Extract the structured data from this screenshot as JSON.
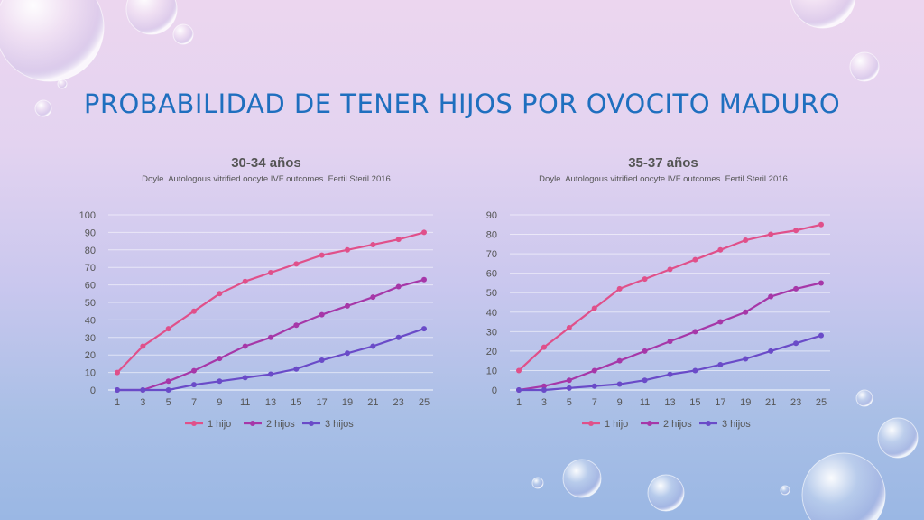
{
  "title": "PROBABILIDAD DE TENER HIJOS POR OVOCITO MADURO",
  "chart_data": [
    {
      "type": "line",
      "title": "30-34 años",
      "subtitle": "Doyle. Autologous vitrified oocyte IVF outcomes. Fertil Steril 2016",
      "x": [
        1,
        3,
        5,
        7,
        9,
        11,
        13,
        15,
        17,
        19,
        21,
        23,
        25
      ],
      "ylim": [
        0,
        100
      ],
      "yticks": [
        0,
        10,
        20,
        30,
        40,
        50,
        60,
        70,
        80,
        90,
        100
      ],
      "grid": true,
      "legend": "bottom",
      "series": [
        {
          "name": "1 hijo",
          "color": "#e0508a",
          "values": [
            10,
            25,
            35,
            45,
            55,
            62,
            67,
            72,
            77,
            80,
            83,
            86,
            90
          ]
        },
        {
          "name": "2 hijos",
          "color": "#a637a8",
          "values": [
            0,
            0,
            5,
            11,
            18,
            25,
            30,
            37,
            43,
            48,
            53,
            59,
            63
          ]
        },
        {
          "name": "3 hijos",
          "color": "#6a4bc8",
          "values": [
            0,
            0,
            0,
            3,
            5,
            7,
            9,
            12,
            17,
            21,
            25,
            30,
            35
          ]
        }
      ]
    },
    {
      "type": "line",
      "title": "35-37 años",
      "subtitle": "Doyle. Autologous vitrified oocyte IVF outcomes. Fertil Steril 2016",
      "x": [
        1,
        3,
        5,
        7,
        9,
        11,
        13,
        15,
        17,
        19,
        21,
        23,
        25
      ],
      "ylim": [
        0,
        90
      ],
      "yticks": [
        0,
        10,
        20,
        30,
        40,
        50,
        60,
        70,
        80,
        90
      ],
      "grid": true,
      "legend": "bottom",
      "series": [
        {
          "name": "1 hijo",
          "color": "#e0508a",
          "values": [
            10,
            22,
            32,
            42,
            52,
            57,
            62,
            67,
            72,
            77,
            80,
            82,
            85
          ]
        },
        {
          "name": "2 hijos",
          "color": "#a637a8",
          "values": [
            0,
            2,
            5,
            10,
            15,
            20,
            25,
            30,
            35,
            40,
            48,
            52,
            55
          ]
        },
        {
          "name": "3 hijos",
          "color": "#6a4bc8",
          "values": [
            0,
            0,
            1,
            2,
            3,
            5,
            8,
            10,
            13,
            16,
            20,
            24,
            28
          ]
        }
      ]
    }
  ]
}
